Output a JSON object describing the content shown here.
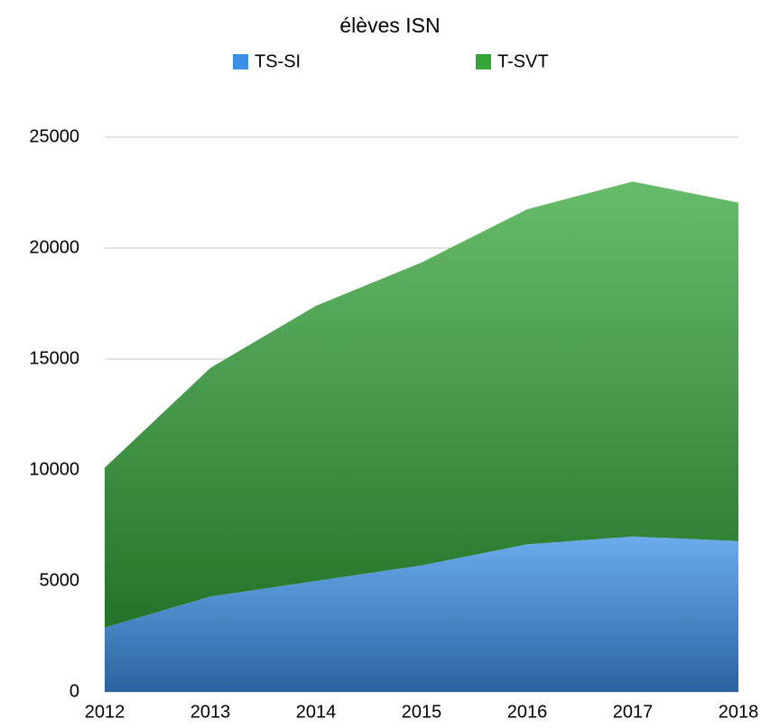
{
  "chart_data": {
    "type": "stacked_area",
    "title": "élèves ISN",
    "categories": [
      "2012",
      "2013",
      "2014",
      "2015",
      "2016",
      "2017",
      "2018"
    ],
    "series": [
      {
        "name": "TS-SI",
        "color": "#3a8fe6",
        "values": [
          2900,
          4300,
          5000,
          5700,
          6650,
          7000,
          6800
        ]
      },
      {
        "name": "T-SVT",
        "color": "#34a53a",
        "values": [
          7200,
          10300,
          12400,
          13650,
          15100,
          16000,
          15250
        ]
      }
    ],
    "ylim": [
      0,
      25000
    ],
    "yticks": [
      0,
      5000,
      10000,
      15000,
      20000,
      25000
    ],
    "grid": true
  }
}
